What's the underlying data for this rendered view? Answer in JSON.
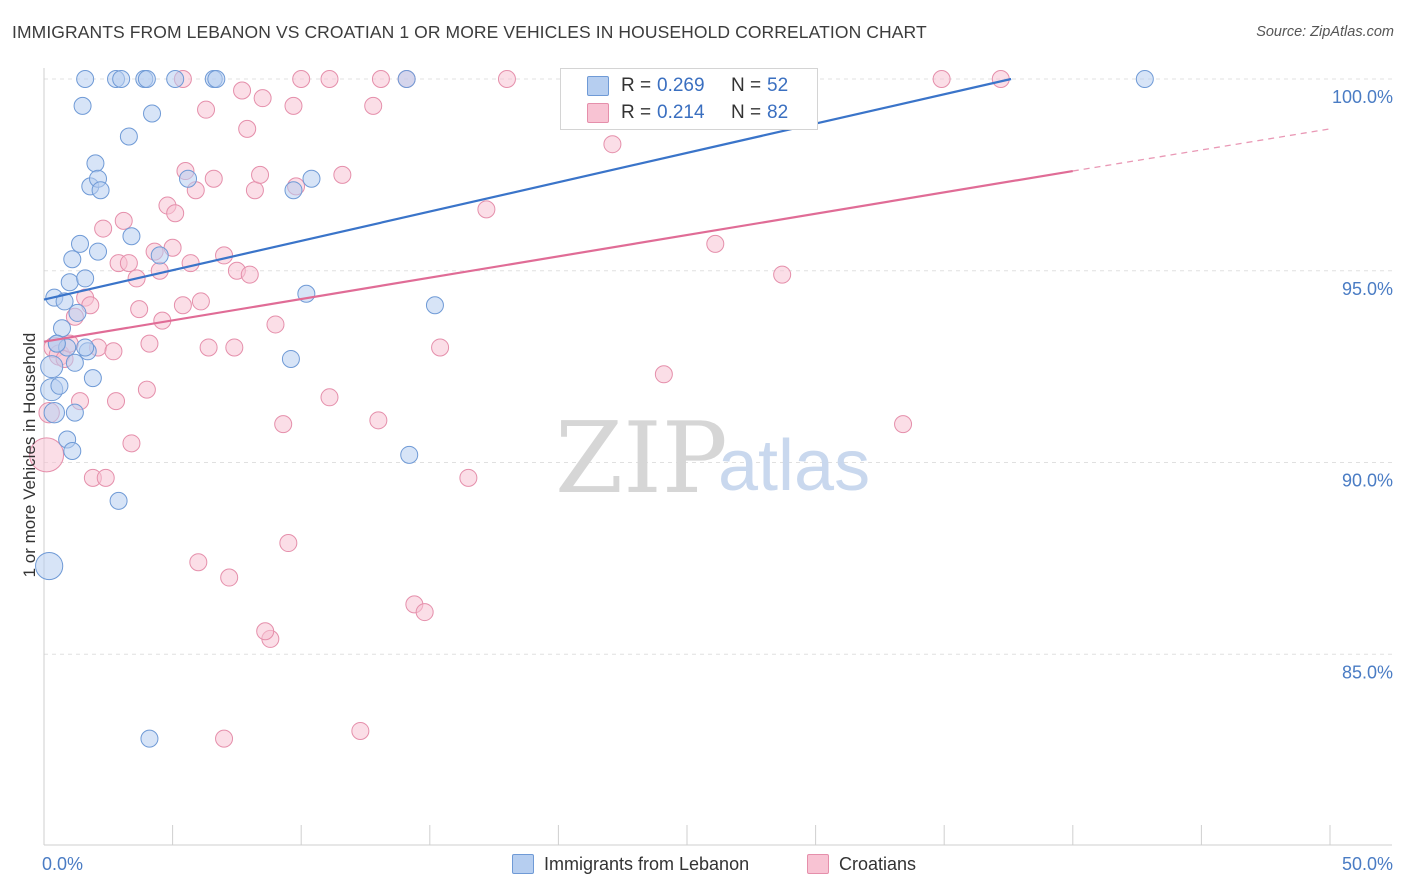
{
  "title": "IMMIGRANTS FROM LEBANON VS CROATIAN 1 OR MORE VEHICLES IN HOUSEHOLD CORRELATION CHART",
  "source": "Source: ZipAtlas.com",
  "watermark": {
    "zip": "ZIP",
    "atlas": "atlas"
  },
  "legend": {
    "r_label": "R =",
    "n_label": "N =",
    "series1": {
      "r": "0.269",
      "n": "52"
    },
    "series2": {
      "r": "0.214",
      "n": "82"
    }
  },
  "colors": {
    "series1_fill": "#b6cef0",
    "series1_stroke": "#6f9ad6",
    "series1_line": "#3a74c9",
    "series2_fill": "#f8c3d3",
    "series2_stroke": "#e58fab",
    "series2_line": "#e06c96",
    "axis_label": "#4a7cc4",
    "grid": "#e0e0e0"
  },
  "chart_data": {
    "type": "scatter",
    "title": "IMMIGRANTS FROM LEBANON VS CROATIAN 1 OR MORE VEHICLES IN HOUSEHOLD CORRELATION CHART",
    "xlabel": "",
    "ylabel": "1 or more Vehicles in Household",
    "xlim": [
      0,
      50
    ],
    "ylim": [
      80.5,
      100.5
    ],
    "x_tick_labels": [
      {
        "value": 0,
        "label": "0.0%"
      },
      {
        "value": 50,
        "label": "50.0%"
      }
    ],
    "y_tick_labels": [
      {
        "value": 100,
        "label": "100.0%"
      },
      {
        "value": 95,
        "label": "95.0%"
      },
      {
        "value": 90,
        "label": "90.0%"
      },
      {
        "value": 85,
        "label": "85.0%"
      }
    ],
    "series": [
      {
        "name": "Immigrants from Lebanon",
        "trend": {
          "x0": 0,
          "y0": 94.25,
          "x1": 37.6,
          "y1": 100.0
        },
        "points": [
          [
            0.2,
            87.3,
            16
          ],
          [
            0.3,
            92.5,
            13
          ],
          [
            0.3,
            91.9,
            13
          ],
          [
            0.4,
            91.3,
            12
          ],
          [
            0.4,
            94.3,
            10
          ],
          [
            0.5,
            93.1,
            10
          ],
          [
            0.6,
            92.0,
            10
          ],
          [
            0.7,
            93.5,
            10
          ],
          [
            0.8,
            94.2,
            10
          ],
          [
            0.9,
            93.0,
            10
          ],
          [
            0.9,
            90.6,
            10
          ],
          [
            1.0,
            94.7,
            10
          ],
          [
            1.1,
            90.3,
            10
          ],
          [
            1.2,
            91.3,
            10
          ],
          [
            1.2,
            92.6,
            10
          ],
          [
            1.3,
            93.9,
            10
          ],
          [
            1.4,
            95.7,
            10
          ],
          [
            1.5,
            99.3,
            10
          ],
          [
            1.6,
            94.8,
            10
          ],
          [
            1.7,
            92.9,
            10
          ],
          [
            1.8,
            97.2,
            10
          ],
          [
            1.9,
            92.2,
            10
          ],
          [
            2.0,
            97.8,
            10
          ],
          [
            2.1,
            97.4,
            10
          ],
          [
            2.2,
            97.1,
            10
          ],
          [
            1.1,
            95.3,
            10
          ],
          [
            2.1,
            95.5,
            10
          ],
          [
            1.6,
            100.0,
            10
          ],
          [
            2.8,
            100.0,
            10
          ],
          [
            3.0,
            100.0,
            10
          ],
          [
            3.3,
            98.5,
            10
          ],
          [
            3.4,
            95.9,
            10
          ],
          [
            3.9,
            100.0,
            10
          ],
          [
            4.0,
            100.0,
            10
          ],
          [
            4.2,
            99.1,
            10
          ],
          [
            4.5,
            95.4,
            10
          ],
          [
            5.1,
            100.0,
            10
          ],
          [
            5.6,
            97.4,
            10
          ],
          [
            6.6,
            100.0,
            10
          ],
          [
            6.7,
            100.0,
            10
          ],
          [
            2.9,
            89.0,
            10
          ],
          [
            4.1,
            82.8,
            10
          ],
          [
            9.7,
            97.1,
            10
          ],
          [
            10.2,
            94.4,
            10
          ],
          [
            10.4,
            97.4,
            10
          ],
          [
            9.6,
            92.7,
            10
          ],
          [
            14.1,
            100.0,
            10
          ],
          [
            14.2,
            90.2,
            10
          ],
          [
            15.2,
            94.1,
            10
          ],
          [
            42.8,
            100.0,
            10
          ],
          [
            0.5,
            93.1,
            10
          ],
          [
            1.6,
            93.0,
            10
          ]
        ]
      },
      {
        "name": "Croatians",
        "trend": {
          "x0": 0,
          "y0": 93.15,
          "x1": 40.0,
          "y1": 97.6,
          "dash_to_x": 50,
          "dash_to_y": 98.7
        },
        "points": [
          [
            0.1,
            90.2,
            20
          ],
          [
            0.2,
            91.3,
            12
          ],
          [
            0.4,
            93.0,
            12
          ],
          [
            0.6,
            92.8,
            12
          ],
          [
            0.8,
            92.7,
            10
          ],
          [
            1.0,
            93.1,
            10
          ],
          [
            1.2,
            93.8,
            10
          ],
          [
            1.4,
            91.6,
            10
          ],
          [
            1.6,
            94.3,
            10
          ],
          [
            1.8,
            94.1,
            10
          ],
          [
            1.9,
            89.6,
            10
          ],
          [
            2.1,
            93.0,
            10
          ],
          [
            2.3,
            96.1,
            10
          ],
          [
            2.4,
            89.6,
            10
          ],
          [
            2.7,
            92.9,
            10
          ],
          [
            2.8,
            91.6,
            10
          ],
          [
            2.9,
            95.2,
            10
          ],
          [
            3.1,
            96.3,
            10
          ],
          [
            3.3,
            95.2,
            10
          ],
          [
            3.4,
            90.5,
            10
          ],
          [
            3.6,
            94.8,
            10
          ],
          [
            3.7,
            94.0,
            10
          ],
          [
            4.0,
            91.9,
            10
          ],
          [
            4.1,
            93.1,
            10
          ],
          [
            4.3,
            95.5,
            10
          ],
          [
            4.5,
            95.0,
            10
          ],
          [
            4.6,
            93.7,
            10
          ],
          [
            4.8,
            96.7,
            10
          ],
          [
            5.0,
            95.6,
            10
          ],
          [
            5.1,
            96.5,
            10
          ],
          [
            5.4,
            94.1,
            10
          ],
          [
            5.5,
            97.6,
            10
          ],
          [
            5.7,
            95.2,
            10
          ],
          [
            5.9,
            97.1,
            10
          ],
          [
            6.1,
            94.2,
            10
          ],
          [
            6.3,
            99.2,
            10
          ],
          [
            6.4,
            93.0,
            10
          ],
          [
            6.6,
            97.4,
            10
          ],
          [
            7.0,
            95.4,
            10
          ],
          [
            7.2,
            87.0,
            10
          ],
          [
            7.4,
            93.0,
            10
          ],
          [
            7.5,
            95.0,
            10
          ],
          [
            7.7,
            99.7,
            10
          ],
          [
            7.9,
            98.7,
            10
          ],
          [
            8.0,
            94.9,
            10
          ],
          [
            8.2,
            97.1,
            10
          ],
          [
            8.4,
            97.5,
            10
          ],
          [
            8.5,
            99.5,
            10
          ],
          [
            8.8,
            85.4,
            10
          ],
          [
            9.0,
            93.6,
            10
          ],
          [
            9.3,
            91.0,
            10
          ],
          [
            9.5,
            87.9,
            10
          ],
          [
            9.7,
            99.3,
            10
          ],
          [
            9.8,
            97.2,
            10
          ],
          [
            10.0,
            100.0,
            10
          ],
          [
            11.1,
            100.0,
            10
          ],
          [
            11.1,
            91.7,
            10
          ],
          [
            11.6,
            97.5,
            10
          ],
          [
            12.3,
            83.0,
            10
          ],
          [
            12.8,
            99.3,
            10
          ],
          [
            13.0,
            91.1,
            10
          ],
          [
            13.1,
            100.0,
            10
          ],
          [
            14.1,
            100.0,
            10
          ],
          [
            14.4,
            86.3,
            10
          ],
          [
            14.8,
            86.1,
            10
          ],
          [
            15.4,
            93.0,
            10
          ],
          [
            16.5,
            89.6,
            10
          ],
          [
            17.2,
            96.6,
            10
          ],
          [
            18.0,
            100.0,
            10
          ],
          [
            22.1,
            98.3,
            10
          ],
          [
            22.8,
            100.0,
            10
          ],
          [
            24.1,
            92.3,
            10
          ],
          [
            26.1,
            95.7,
            10
          ],
          [
            28.0,
            100.0,
            10
          ],
          [
            28.7,
            94.9,
            10
          ],
          [
            33.4,
            91.0,
            10
          ],
          [
            34.9,
            100.0,
            10
          ],
          [
            37.2,
            100.0,
            10
          ],
          [
            8.6,
            85.6,
            10
          ],
          [
            7.0,
            82.8,
            10
          ],
          [
            6.0,
            87.4,
            10
          ],
          [
            5.4,
            100.0,
            10
          ]
        ]
      }
    ]
  }
}
